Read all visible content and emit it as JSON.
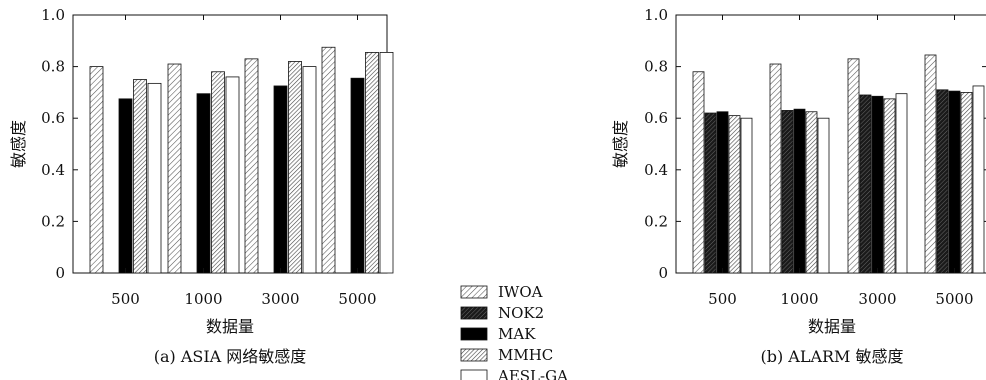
{
  "chart_data": [
    {
      "type": "bar",
      "caption": "(a) ASIA 网络敏感度",
      "xlabel": "数据量",
      "ylabel": "敏感度",
      "ylim": [
        0,
        1.0
      ],
      "yticks": [
        "0",
        "0.2",
        "0.4",
        "0.6",
        "0.8",
        "1.0"
      ],
      "categories": [
        "500",
        "1000",
        "3000",
        "5000"
      ],
      "series": [
        {
          "name": "IWOA",
          "values": [
            0.8,
            0.81,
            0.83,
            0.875
          ]
        },
        {
          "name": "NOK2",
          "values": [
            null,
            null,
            null,
            null
          ]
        },
        {
          "name": "MAK",
          "values": [
            0.675,
            0.695,
            0.725,
            0.755
          ]
        },
        {
          "name": "MMHC",
          "values": [
            0.75,
            0.78,
            0.82,
            0.855
          ]
        },
        {
          "name": "AESL-GA",
          "values": [
            0.735,
            0.76,
            0.8,
            0.855
          ]
        }
      ]
    },
    {
      "type": "bar",
      "caption": "(b) ALARM 敏感度",
      "xlabel": "数据量",
      "ylabel": "敏感度",
      "ylim": [
        0,
        1.0
      ],
      "yticks": [
        "0",
        "0.2",
        "0.4",
        "0.6",
        "0.8",
        "1.0"
      ],
      "categories": [
        "500",
        "1000",
        "3000",
        "5000"
      ],
      "series": [
        {
          "name": "IWOA",
          "values": [
            0.78,
            0.81,
            0.83,
            0.845
          ]
        },
        {
          "name": "NOK2",
          "values": [
            0.62,
            0.63,
            0.69,
            0.71
          ]
        },
        {
          "name": "MAK",
          "values": [
            0.625,
            0.635,
            0.685,
            0.705
          ]
        },
        {
          "name": "MMHC",
          "values": [
            0.61,
            0.625,
            0.675,
            0.7
          ]
        },
        {
          "name": "AESL-GA",
          "values": [
            0.6,
            0.6,
            0.695,
            0.725
          ]
        }
      ]
    }
  ],
  "legend": {
    "placement": "bottom-center",
    "entries": [
      {
        "label": "IWOA",
        "pattern": "diag-light"
      },
      {
        "label": "NOK2",
        "pattern": "diag-dark"
      },
      {
        "label": "MAK",
        "pattern": "solid-black"
      },
      {
        "label": "MMHC",
        "pattern": "diag-dense"
      },
      {
        "label": "AESL-GA",
        "pattern": "empty"
      }
    ]
  }
}
